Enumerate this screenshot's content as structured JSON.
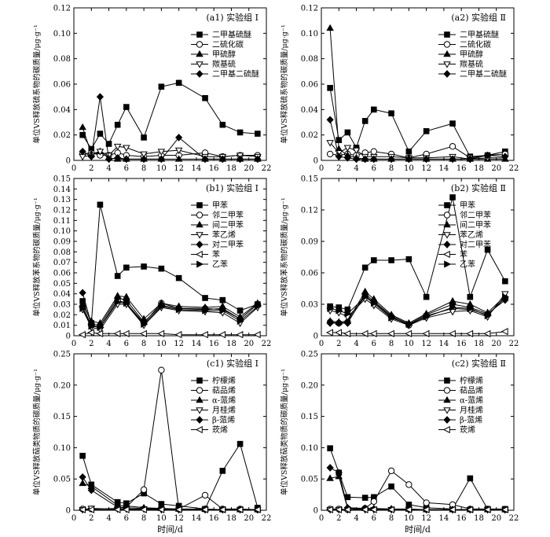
{
  "figure": {
    "x_axis_title": "时间/d"
  },
  "chart_data": [
    {
      "id": "a1",
      "type": "line",
      "title": "(a1) 实验组 Ⅰ",
      "ylabel": "单位VS释放硫系物的碳质量/μg·g⁻¹",
      "xlim": [
        0,
        22
      ],
      "ylim": [
        0,
        0.12
      ],
      "xticks": [
        0,
        2,
        4,
        6,
        8,
        10,
        12,
        14,
        16,
        18,
        20,
        22
      ],
      "yticks": [
        0,
        0.02,
        0.04,
        0.06,
        0.08,
        0.1,
        0.12
      ],
      "ytick_labels": [
        "0",
        "0.02",
        "0.04",
        "0.06",
        "0.08",
        "0.10",
        "0.12"
      ],
      "x": [
        1,
        2,
        3,
        4,
        5,
        6,
        8,
        10,
        12,
        15,
        17,
        19,
        21
      ],
      "series": [
        {
          "name": "二甲基硫醚",
          "marker": "square-filled",
          "values": [
            0.02,
            0.009,
            0.021,
            0.013,
            0.028,
            0.042,
            0.018,
            0.058,
            0.061,
            0.049,
            0.028,
            0.022,
            0.021
          ]
        },
        {
          "name": "二硫化碳",
          "marker": "circle-open",
          "values": [
            0.005,
            0.006,
            0.004,
            0.004,
            0.006,
            0.004,
            0.003,
            0.004,
            0.004,
            0.006,
            0.003,
            0.004,
            0.004
          ]
        },
        {
          "name": "甲硫醇",
          "marker": "triangle-filled",
          "values": [
            0.026,
            0.005,
            0.007,
            0.002,
            0.001,
            0.001,
            0.001,
            0.001,
            0.001,
            0.001,
            0.001,
            0.001,
            0.001
          ]
        },
        {
          "name": "羰基硫",
          "marker": "triangle-down-open",
          "values": [
            0.003,
            0.004,
            0.007,
            0.004,
            0.011,
            0.01,
            0.005,
            0.007,
            0.008,
            0.003,
            0.003,
            0.004,
            0.003
          ]
        },
        {
          "name": "二甲基二硫醚",
          "marker": "diamond-filled",
          "values": [
            0.007,
            0.003,
            0.05,
            0.001,
            0.002,
            0.001,
            0.001,
            0.001,
            0.018,
            0.001,
            0.001,
            0.001,
            0.001
          ]
        }
      ]
    },
    {
      "id": "a2",
      "type": "line",
      "title": "(a2) 实验组 Ⅱ",
      "ylabel": "单位VS释放硫系物的碳质量/μg·g⁻¹",
      "xlim": [
        0,
        22
      ],
      "ylim": [
        0,
        0.12
      ],
      "xticks": [
        0,
        2,
        4,
        6,
        8,
        10,
        12,
        14,
        16,
        18,
        20,
        22
      ],
      "yticks": [
        0,
        0.02,
        0.04,
        0.06,
        0.08,
        0.1,
        0.12
      ],
      "ytick_labels": [
        "0",
        "0.02",
        "0.04",
        "0.06",
        "0.08",
        "0.10",
        "0.12"
      ],
      "x": [
        1,
        2,
        3,
        4,
        5,
        6,
        8,
        10,
        12,
        15,
        17,
        19,
        21
      ],
      "series": [
        {
          "name": "二甲基硫醚",
          "marker": "square-filled",
          "values": [
            0.057,
            0.016,
            0.022,
            0.01,
            0.031,
            0.04,
            0.037,
            0.007,
            0.023,
            0.029,
            0.003,
            0.004,
            0.007
          ]
        },
        {
          "name": "二硫化碳",
          "marker": "circle-open",
          "values": [
            0.005,
            0.004,
            0.005,
            0.004,
            0.006,
            0.007,
            0.005,
            0.002,
            0.005,
            0.011,
            0.002,
            0.004,
            0.005
          ]
        },
        {
          "name": "甲硫醇",
          "marker": "triangle-filled",
          "values": [
            0.104,
            0.009,
            0.004,
            0.002,
            0.001,
            0.001,
            0.001,
            0.001,
            0.001,
            0.001,
            0.001,
            0.001,
            0.001
          ]
        },
        {
          "name": "羰基硫",
          "marker": "triangle-down-open",
          "values": [
            0.014,
            0.006,
            0.01,
            0.008,
            0.003,
            0.003,
            0.003,
            0.002,
            0.002,
            0.003,
            0.001,
            0.002,
            0.002
          ]
        },
        {
          "name": "二甲基二硫醚",
          "marker": "diamond-filled",
          "values": [
            0.032,
            0.003,
            0.002,
            0.001,
            0.001,
            0.001,
            0.001,
            0.001,
            0.001,
            0.001,
            0.001,
            0.004,
            0.003
          ]
        }
      ]
    },
    {
      "id": "b1",
      "type": "line",
      "title": "(b1) 实验组 Ⅰ",
      "ylabel": "单位VS释放苯系物的碳质量/μg·g⁻¹",
      "xlim": [
        0,
        22
      ],
      "ylim": [
        0,
        0.15
      ],
      "xticks": [
        0,
        2,
        4,
        6,
        8,
        10,
        12,
        14,
        16,
        18,
        20,
        22
      ],
      "yticks": [
        0,
        0.01,
        0.02,
        0.03,
        0.04,
        0.05,
        0.06,
        0.07,
        0.08,
        0.09,
        0.1,
        0.11,
        0.12,
        0.13,
        0.14,
        0.15
      ],
      "ytick_labels": [
        "0",
        "0.01",
        "0.02",
        "0.03",
        "0.04",
        "0.05",
        "0.06",
        "0.07",
        "0.08",
        "0.09",
        "0.10",
        "0.11",
        "0.12",
        "0.13",
        "0.14",
        "0.15"
      ],
      "x": [
        1,
        2,
        3,
        5,
        6,
        8,
        10,
        12,
        15,
        17,
        19,
        21
      ],
      "series": [
        {
          "name": "甲苯",
          "marker": "square-filled",
          "values": [
            0.033,
            0.012,
            0.125,
            0.057,
            0.065,
            0.066,
            0.064,
            0.055,
            0.036,
            0.034,
            0.024,
            0.03
          ]
        },
        {
          "name": "邻二甲苯",
          "marker": "circle-open",
          "values": [
            0.028,
            0.01,
            0.008,
            0.034,
            0.031,
            0.012,
            0.031,
            0.026,
            0.026,
            0.025,
            0.016,
            0.03
          ]
        },
        {
          "name": "间二甲苯",
          "marker": "triangle-filled",
          "values": [
            0.03,
            0.014,
            0.012,
            0.038,
            0.037,
            0.016,
            0.031,
            0.028,
            0.027,
            0.028,
            0.018,
            0.031
          ]
        },
        {
          "name": "苯乙烯",
          "marker": "triangle-down-open",
          "values": [
            0.025,
            0.008,
            0.006,
            0.03,
            0.03,
            0.01,
            0.027,
            0.024,
            0.023,
            0.022,
            0.012,
            0.027
          ]
        },
        {
          "name": "对二甲苯",
          "marker": "diamond-filled",
          "values": [
            0.041,
            0.011,
            0.01,
            0.036,
            0.034,
            0.013,
            0.029,
            0.026,
            0.025,
            0.026,
            0.016,
            0.03
          ]
        },
        {
          "name": "苯",
          "marker": "triangle-left-open",
          "values": [
            0.001,
            0.003,
            0.002,
            0.002,
            0.002,
            0.002,
            0.002,
            0.001,
            0.001,
            0.001,
            0.001,
            0.001
          ]
        },
        {
          "name": "乙苯",
          "marker": "triangle-right-filled",
          "values": [
            0.026,
            0.009,
            0.008,
            0.032,
            0.031,
            0.011,
            0.028,
            0.025,
            0.024,
            0.024,
            0.014,
            0.028
          ]
        }
      ]
    },
    {
      "id": "b2",
      "type": "line",
      "title": "(b2) 实验组 Ⅱ",
      "ylabel": "单位VS释放苯系物的碳质量/μg·g⁻¹",
      "xlim": [
        0,
        22
      ],
      "ylim": [
        0,
        0.15
      ],
      "xticks": [
        0,
        2,
        4,
        6,
        8,
        10,
        12,
        14,
        16,
        18,
        20,
        22
      ],
      "yticks": [
        0,
        0.03,
        0.06,
        0.09,
        0.12,
        0.15
      ],
      "ytick_labels": [
        "0",
        "0.03",
        "0.06",
        "0.09",
        "0.12",
        "0.15"
      ],
      "x": [
        1,
        2,
        3,
        5,
        6,
        8,
        10,
        12,
        15,
        17,
        19,
        21
      ],
      "series": [
        {
          "name": "甲苯",
          "marker": "square-filled",
          "values": [
            0.028,
            0.027,
            0.025,
            0.065,
            0.072,
            0.072,
            0.073,
            0.037,
            0.132,
            0.037,
            0.082,
            0.052
          ]
        },
        {
          "name": "邻二甲苯",
          "marker": "circle-open",
          "values": [
            0.013,
            0.012,
            0.013,
            0.038,
            0.032,
            0.018,
            0.01,
            0.019,
            0.026,
            0.025,
            0.02,
            0.036
          ]
        },
        {
          "name": "间二甲苯",
          "marker": "triangle-filled",
          "values": [
            0.014,
            0.013,
            0.014,
            0.042,
            0.035,
            0.02,
            0.012,
            0.021,
            0.033,
            0.03,
            0.022,
            0.038
          ]
        },
        {
          "name": "苯乙烯",
          "marker": "triangle-down-open",
          "values": [
            0.024,
            0.022,
            0.018,
            0.035,
            0.029,
            0.016,
            0.01,
            0.017,
            0.023,
            0.024,
            0.018,
            0.04
          ]
        },
        {
          "name": "对二甲苯",
          "marker": "diamond-filled",
          "values": [
            0.012,
            0.012,
            0.012,
            0.04,
            0.033,
            0.019,
            0.011,
            0.02,
            0.03,
            0.027,
            0.021,
            0.034
          ]
        },
        {
          "name": "苯",
          "marker": "triangle-left-open",
          "values": [
            0.003,
            0.003,
            0.002,
            0.002,
            0.002,
            0.002,
            0.002,
            0.002,
            0.002,
            0.002,
            0.002,
            0.004
          ]
        },
        {
          "name": "乙苯",
          "marker": "triangle-right-filled",
          "values": [
            0.026,
            0.024,
            0.021,
            0.037,
            0.031,
            0.017,
            0.011,
            0.018,
            0.027,
            0.026,
            0.019,
            0.037
          ]
        }
      ]
    },
    {
      "id": "c1",
      "type": "line",
      "title": "(c1) 实验组 Ⅰ",
      "ylabel": "单位VS释放萜类物质的碳质量/μg·g⁻¹",
      "xlim": [
        0,
        22
      ],
      "ylim": [
        0,
        0.25
      ],
      "xticks": [
        0,
        2,
        4,
        6,
        8,
        10,
        12,
        14,
        16,
        18,
        20,
        22
      ],
      "yticks": [
        0,
        0.05,
        0.1,
        0.15,
        0.2,
        0.25
      ],
      "ytick_labels": [
        "0",
        "0.05",
        "0.10",
        "0.15",
        "0.20",
        "0.25"
      ],
      "x": [
        1,
        2,
        5,
        6,
        8,
        10,
        12,
        15,
        17,
        19,
        21
      ],
      "series": [
        {
          "name": "柠檬烯",
          "marker": "square-filled",
          "values": [
            0.087,
            0.041,
            0.013,
            0.011,
            0.027,
            0.01,
            0.007,
            0.002,
            0.063,
            0.106,
            0.004
          ]
        },
        {
          "name": "萜品烯",
          "marker": "circle-open",
          "values": [
            0.002,
            0.002,
            0.003,
            0.005,
            0.033,
            0.224,
            0.002,
            0.024,
            0.002,
            0.002,
            0.001
          ]
        },
        {
          "name": "α-蒎烯",
          "marker": "triangle-filled",
          "values": [
            0.043,
            0.038,
            0.008,
            0.007,
            0.004,
            0.003,
            0.002,
            0.002,
            0.001,
            0.001,
            0.001
          ]
        },
        {
          "name": "月桂烯",
          "marker": "triangle-down-open",
          "values": [
            0.001,
            0.003,
            0.002,
            0.002,
            0.002,
            0.001,
            0.001,
            0.001,
            0.001,
            0.001,
            0.001
          ]
        },
        {
          "name": "β-蒎烯",
          "marker": "diamond-filled",
          "values": [
            0.053,
            0.032,
            0.005,
            0.004,
            0.003,
            0.002,
            0.001,
            0.001,
            0.001,
            0.001,
            0.001
          ]
        },
        {
          "name": "莰烯",
          "marker": "triangle-left-open",
          "values": [
            0.001,
            0.001,
            0.001,
            0.001,
            0.001,
            0.001,
            0.001,
            0.001,
            0.001,
            0.001,
            0.001
          ]
        }
      ]
    },
    {
      "id": "c2",
      "type": "line",
      "title": "(c2) 实验组 Ⅱ",
      "ylabel": "单位VS释放萜类物质的碳质量/μg·g⁻¹",
      "xlim": [
        0,
        22
      ],
      "ylim": [
        0,
        0.25
      ],
      "xticks": [
        0,
        2,
        4,
        6,
        8,
        10,
        12,
        14,
        16,
        18,
        20,
        22
      ],
      "yticks": [
        0,
        0.05,
        0.1,
        0.15,
        0.2,
        0.25
      ],
      "ytick_labels": [
        "0",
        "0.05",
        "0.10",
        "0.15",
        "0.20",
        "0.25"
      ],
      "x": [
        1,
        2,
        3,
        5,
        6,
        8,
        10,
        12,
        15,
        17,
        19,
        21
      ],
      "series": [
        {
          "name": "柠檬烯",
          "marker": "square-filled",
          "values": [
            0.099,
            0.06,
            0.021,
            0.02,
            0.021,
            0.038,
            0.009,
            0.004,
            0.002,
            0.051,
            0.002,
            0.002
          ]
        },
        {
          "name": "萜品烯",
          "marker": "circle-open",
          "values": [
            0.002,
            0.002,
            0.001,
            0.003,
            0.014,
            0.063,
            0.041,
            0.012,
            0.009,
            0.002,
            0.002,
            0.001
          ]
        },
        {
          "name": "α-蒎烯",
          "marker": "triangle-filled",
          "values": [
            0.051,
            0.054,
            0.003,
            0.003,
            0.003,
            0.002,
            0.002,
            0.001,
            0.001,
            0.001,
            0.001,
            0.001
          ]
        },
        {
          "name": "月桂烯",
          "marker": "triangle-down-open",
          "values": [
            0.001,
            0.001,
            0.001,
            0.001,
            0.001,
            0.001,
            0.001,
            0.001,
            0.001,
            0.001,
            0.001,
            0.001
          ]
        },
        {
          "name": "β-蒎烯",
          "marker": "diamond-filled",
          "values": [
            0.068,
            0.06,
            0.004,
            0.003,
            0.002,
            0.002,
            0.001,
            0.001,
            0.001,
            0.001,
            0.001,
            0.001
          ]
        },
        {
          "name": "莰烯",
          "marker": "triangle-left-open",
          "values": [
            0.001,
            0.001,
            0.001,
            0.001,
            0.001,
            0.001,
            0.001,
            0.001,
            0.001,
            0.001,
            0.001,
            0.001
          ]
        }
      ]
    }
  ]
}
